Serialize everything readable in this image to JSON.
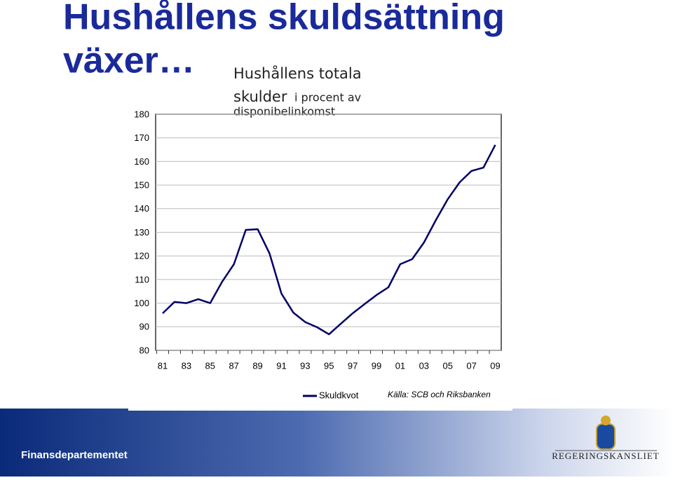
{
  "chart_data": {
    "type": "line",
    "title": [
      "Hushållens skuldsättning",
      "växer…"
    ],
    "subtitle": [
      "Hushållens totala",
      "skulder",
      "i procent av",
      "disponibelinkomst"
    ],
    "categories": [
      "81",
      null,
      "83",
      null,
      "85",
      null,
      "87",
      null,
      "89",
      null,
      "91",
      null,
      "93",
      null,
      "95",
      null,
      "97",
      null,
      "99",
      null,
      "01",
      null,
      "03",
      null,
      "05",
      null,
      "07",
      null,
      "09"
    ],
    "series": [
      {
        "name": "Skuldkvot",
        "color": "#000066",
        "values": [
          95.7,
          100.5,
          100,
          101.7,
          100,
          109,
          116.5,
          131,
          131.3,
          121,
          104,
          96,
          92,
          89.8,
          86.8,
          91.3,
          95.7,
          99.6,
          103.4,
          106.7,
          116.5,
          118.6,
          125.7,
          135.2,
          144,
          151.2,
          156,
          157.4,
          167
        ]
      }
    ],
    "ylim": [
      80,
      180
    ],
    "yticks": [
      80,
      90,
      100,
      110,
      120,
      130,
      140,
      150,
      160,
      170,
      180
    ],
    "grid": true,
    "source": "Källa: SCB och Riksbanken"
  },
  "slide": {
    "footer": "Finansdepartementet",
    "logo_text": "REGERINGSKANSLIET"
  }
}
